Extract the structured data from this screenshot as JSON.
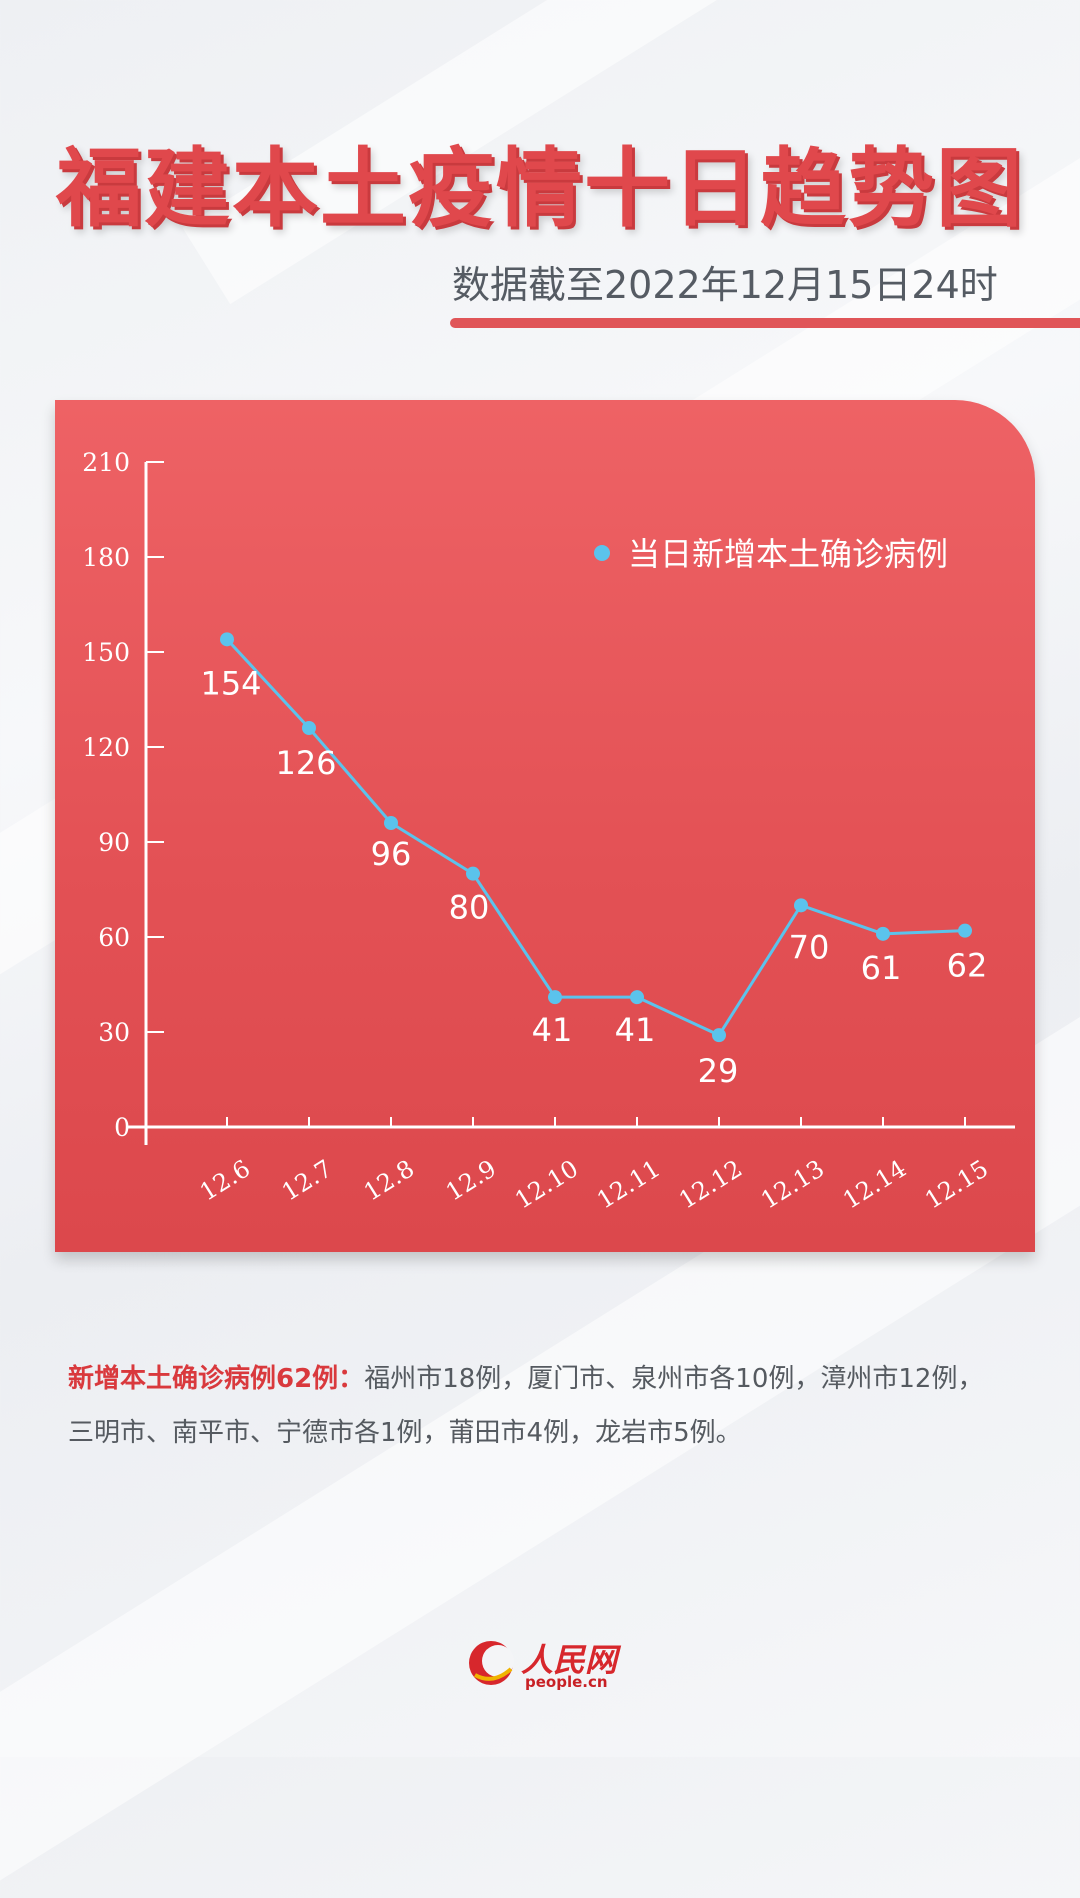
{
  "title": "福建本土疫情十日趋势图",
  "subtitle": "数据截至2022年12月15日24时",
  "note": {
    "highlight": "新增本土确诊病例62例：",
    "text": "福州市18例，厦门市、泉州市各10例，漳州市12例，三明市、南平市、宁德市各1例，莆田市4例，龙岩市5例。"
  },
  "logo": {
    "name": "人民网",
    "domain": "people.cn"
  },
  "colors": {
    "title": "#e0484c",
    "card": "#e35155",
    "series": "#5bc3ec",
    "note_highlight": "#d9393d"
  },
  "chart_data": {
    "type": "line",
    "categories": [
      "12.6",
      "12.7",
      "12.8",
      "12.9",
      "12.10",
      "12.11",
      "12.12",
      "12.13",
      "12.14",
      "12.15"
    ],
    "series": [
      {
        "name": "当日新增本土确诊病例",
        "values": [
          154,
          126,
          96,
          80,
          41,
          41,
          29,
          70,
          61,
          62
        ]
      }
    ],
    "yticks": [
      0,
      30,
      60,
      90,
      120,
      150,
      180,
      210
    ],
    "ylim": [
      0,
      210
    ],
    "grid": false,
    "legend": "top-right",
    "data_labels": true
  }
}
